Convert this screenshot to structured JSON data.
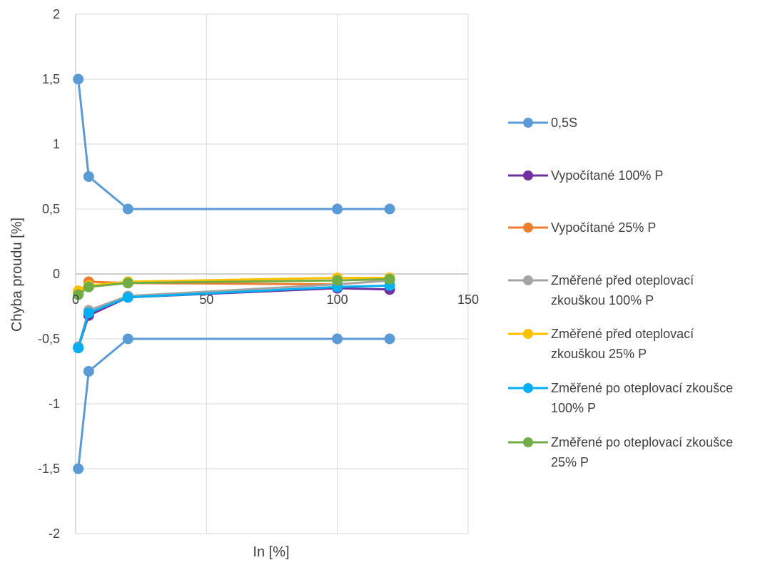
{
  "chart_data": {
    "type": "line",
    "xlabel": "In [%]",
    "ylabel": "Chyba proudu [%]",
    "xlim": [
      0,
      150
    ],
    "ylim": [
      -2,
      2
    ],
    "x_ticks": [
      0,
      50,
      100,
      150
    ],
    "x_tick_labels": [
      "0",
      "50",
      "100",
      "150"
    ],
    "y_ticks": [
      2,
      1.5,
      1,
      0.5,
      0,
      -0.5,
      -1,
      -1.5,
      -2
    ],
    "y_tick_labels": [
      "2",
      "1,5",
      "1",
      "0,5",
      "0",
      "-0,5",
      "-1",
      "-1,5",
      "-2"
    ],
    "grid": true,
    "legend_position": "right",
    "series": [
      {
        "name": "0,5S",
        "color": "#5b9bd5",
        "x": [
          1,
          5,
          20,
          100,
          120,
          null,
          1,
          5,
          20,
          100,
          120
        ],
        "y": [
          1.5,
          0.75,
          0.5,
          0.5,
          0.5,
          null,
          -1.5,
          -0.75,
          -0.5,
          -0.5,
          -0.5
        ]
      },
      {
        "name": "Vypočítané 100% P",
        "color": "#7030a0",
        "x": [
          1,
          5,
          20,
          100,
          120
        ],
        "y": [
          -0.57,
          -0.32,
          -0.18,
          -0.11,
          -0.12
        ]
      },
      {
        "name": "Vypočítané 25% P",
        "color": "#ed7d31",
        "x": [
          1,
          5,
          20,
          100,
          120
        ],
        "y": [
          -0.15,
          -0.06,
          -0.07,
          -0.08,
          -0.05
        ]
      },
      {
        "name": "Změřené před oteplovací zkouškou 100% P",
        "color": "#a5a5a5",
        "x": [
          1,
          5,
          20,
          100,
          120
        ],
        "y": [
          -0.56,
          -0.28,
          -0.17,
          -0.08,
          -0.05
        ]
      },
      {
        "name": "Změřené před oteplovací zkouškou 25% P",
        "color": "#ffc000",
        "x": [
          1,
          5,
          20,
          100,
          120
        ],
        "y": [
          -0.13,
          -0.09,
          -0.06,
          -0.03,
          -0.03
        ]
      },
      {
        "name": "Změřené po oteplovací zkoušce 100% P",
        "color": "#00b0f0",
        "x": [
          1,
          5,
          20,
          100,
          120
        ],
        "y": [
          -0.57,
          -0.3,
          -0.18,
          -0.1,
          -0.09
        ]
      },
      {
        "name": "Změřené po oteplovací zkoušce 25% P",
        "color": "#70ad47",
        "x": [
          1,
          5,
          20,
          100,
          120
        ],
        "y": [
          -0.16,
          -0.1,
          -0.07,
          -0.05,
          -0.04
        ]
      }
    ]
  }
}
